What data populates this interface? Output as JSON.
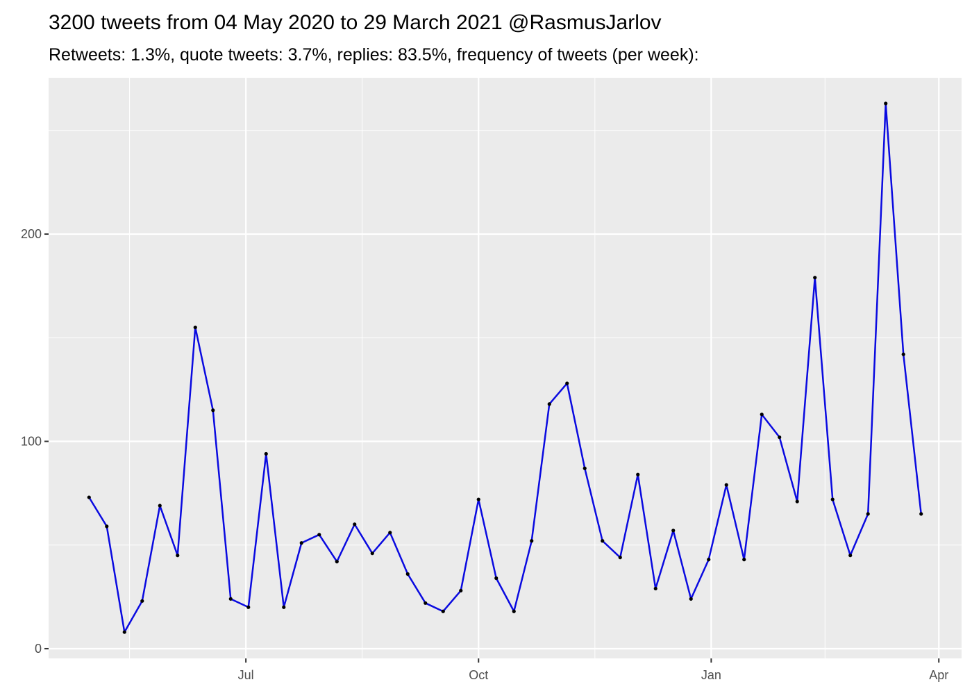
{
  "chart_data": {
    "type": "line",
    "title": "3200 tweets from 04 May 2020 to 29 March 2021 @RasmusJarlov",
    "subtitle": "Retweets: 1.3%, quote tweets: 3.7%, replies: 83.5%, frequency of tweets (per week):",
    "x": [
      "2020-04-30",
      "2020-05-07",
      "2020-05-14",
      "2020-05-21",
      "2020-05-28",
      "2020-06-04",
      "2020-06-11",
      "2020-06-18",
      "2020-06-25",
      "2020-07-02",
      "2020-07-09",
      "2020-07-16",
      "2020-07-23",
      "2020-07-30",
      "2020-08-06",
      "2020-08-13",
      "2020-08-20",
      "2020-08-27",
      "2020-09-03",
      "2020-09-10",
      "2020-09-17",
      "2020-09-24",
      "2020-10-01",
      "2020-10-08",
      "2020-10-15",
      "2020-10-22",
      "2020-10-29",
      "2020-11-05",
      "2020-11-12",
      "2020-11-19",
      "2020-11-26",
      "2020-12-03",
      "2020-12-10",
      "2020-12-17",
      "2020-12-24",
      "2020-12-31",
      "2021-01-07",
      "2021-01-14",
      "2021-01-21",
      "2021-01-28",
      "2021-02-04",
      "2021-02-11",
      "2021-02-18",
      "2021-02-25",
      "2021-03-04",
      "2021-03-11",
      "2021-03-18",
      "2021-03-25"
    ],
    "values": [
      73,
      59,
      8,
      23,
      69,
      45,
      155,
      115,
      24,
      20,
      94,
      20,
      51,
      55,
      42,
      60,
      46,
      56,
      36,
      22,
      18,
      28,
      72,
      34,
      18,
      52,
      118,
      128,
      87,
      52,
      44,
      84,
      29,
      57,
      24,
      43,
      79,
      43,
      113,
      102,
      71,
      179,
      72,
      45,
      65,
      263,
      142,
      65
    ],
    "color": "#0a0ae0",
    "point_color": "#000000",
    "xlim": [
      "2020-04-14",
      "2021-04-10"
    ],
    "xticks": [
      {
        "value": "2020-07-01",
        "label": "Jul"
      },
      {
        "value": "2020-10-01",
        "label": "Oct"
      },
      {
        "value": "2021-01-01",
        "label": "Jan"
      },
      {
        "value": "2021-04-01",
        "label": "Apr"
      }
    ],
    "x_minor_grid": [
      "2020-05-16",
      "2020-08-16",
      "2020-11-16",
      "2021-02-15"
    ],
    "ylim": [
      -4.7,
      275.4
    ],
    "yticks": [
      0,
      100,
      200
    ],
    "y_minor_grid": [
      50,
      150,
      250
    ],
    "grid": true
  }
}
